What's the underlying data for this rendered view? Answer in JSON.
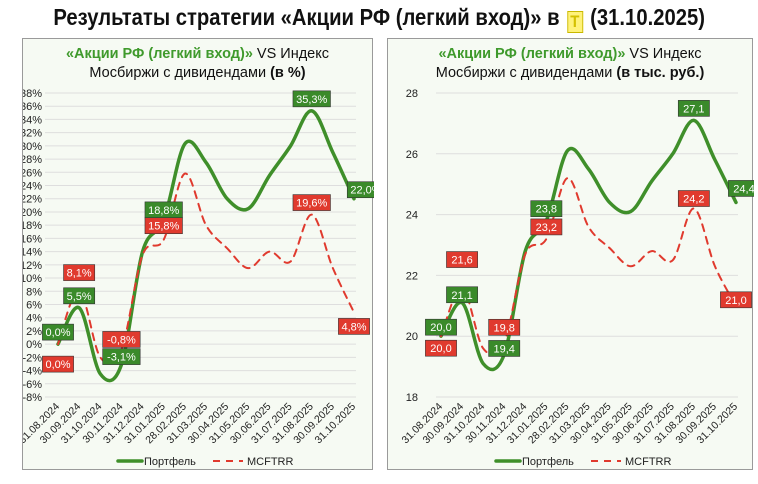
{
  "page_title": {
    "before": "Результаты стратегии «Акции РФ (легкий вход)» в",
    "logo_letter": "T",
    "after": "(31.10.2025)"
  },
  "colors": {
    "portfolio": "#3f8f2a",
    "index": "#e03a2e",
    "label_green": "#3a8a2a",
    "label_red": "#e03a2e"
  },
  "chart_data": [
    {
      "type": "line",
      "title": {
        "strategy": "«Акции РФ (легкий вход)»",
        "vs": " VS Индекс",
        "line2": "Мосбиржи с дивидендами ",
        "unit": "(в %)"
      },
      "categories": [
        "31.08.2024",
        "30.09.2024",
        "31.10.2024",
        "30.11.2024",
        "31.12.2024",
        "31.01.2025",
        "28.02.2025",
        "31.03.2025",
        "30.04.2025",
        "31.05.2025",
        "30.06.2025",
        "31.07.2025",
        "31.08.2025",
        "30.09.2025",
        "31.10.2025"
      ],
      "ylim": [
        -8,
        38
      ],
      "ytick_step": 2,
      "ytick_suffix": "%",
      "grid": true,
      "legend": "bottom",
      "series": [
        {
          "name": "Портфель",
          "style": "solid",
          "values": [
            0,
            5.5,
            -4.5,
            -3.1,
            14,
            18.8,
            30.3,
            27.5,
            22,
            20.5,
            25.5,
            30,
            35.3,
            29,
            22.0
          ],
          "labels": [
            {
              "i": 0,
              "text": "0,0%"
            },
            {
              "i": 1,
              "text": "5,5%"
            },
            {
              "i": 3,
              "text": "-3,1%"
            },
            {
              "i": 5,
              "text": "18,8%"
            },
            {
              "i": 12,
              "text": "35,3%"
            },
            {
              "i": 14,
              "text": "22,0%"
            }
          ]
        },
        {
          "name": "MCFTRR",
          "style": "dashed",
          "values": [
            0,
            8.1,
            -2,
            -0.8,
            13.5,
            15.8,
            25.8,
            18,
            14.5,
            11.5,
            14,
            12.5,
            19.6,
            11.5,
            4.8
          ],
          "labels": [
            {
              "i": 0,
              "text": "0,0%"
            },
            {
              "i": 1,
              "text": "8,1%"
            },
            {
              "i": 3,
              "text": "-0,8%"
            },
            {
              "i": 5,
              "text": "15,8%"
            },
            {
              "i": 12,
              "text": "19,6%"
            },
            {
              "i": 14,
              "text": "4,8%"
            }
          ]
        }
      ]
    },
    {
      "type": "line",
      "title": {
        "strategy": "«Акции РФ (легкий вход)»",
        "vs": " VS Индекс",
        "line2": "Мосбиржи с дивидендами ",
        "unit": "(в тыс. руб.)"
      },
      "categories": [
        "31.08.2024",
        "30.09.2024",
        "31.10.2024",
        "30.11.2024",
        "31.12.2024",
        "31.01.2025",
        "28.02.2025",
        "31.03.2025",
        "30.04.2025",
        "31.05.2025",
        "30.06.2025",
        "31.07.2025",
        "31.08.2025",
        "30.09.2025",
        "31.10.2025"
      ],
      "ylim": [
        18,
        28
      ],
      "ytick_step": 2,
      "ytick_suffix": "",
      "grid": true,
      "legend": "bottom",
      "series": [
        {
          "name": "Портфель",
          "style": "solid",
          "values": [
            20.0,
            21.1,
            19.1,
            19.4,
            22.8,
            23.8,
            26.1,
            25.5,
            24.4,
            24.1,
            25.1,
            26.0,
            27.1,
            25.8,
            24.4
          ],
          "labels": [
            {
              "i": 0,
              "text": "20,0"
            },
            {
              "i": 1,
              "text": "21,1"
            },
            {
              "i": 3,
              "text": "19,4"
            },
            {
              "i": 5,
              "text": "23,8"
            },
            {
              "i": 12,
              "text": "27,1"
            },
            {
              "i": 14,
              "text": "24,4"
            }
          ]
        },
        {
          "name": "MCFTRR",
          "style": "dashed",
          "values": [
            20.0,
            21.6,
            19.6,
            19.8,
            22.7,
            23.2,
            25.2,
            23.6,
            22.9,
            22.3,
            22.8,
            22.5,
            24.2,
            22.3,
            21.0
          ],
          "labels": [
            {
              "i": 0,
              "text": "20,0"
            },
            {
              "i": 1,
              "text": "21,6"
            },
            {
              "i": 3,
              "text": "19,8"
            },
            {
              "i": 5,
              "text": "23,2"
            },
            {
              "i": 12,
              "text": "24,2"
            },
            {
              "i": 14,
              "text": "21,0"
            }
          ]
        }
      ]
    }
  ]
}
